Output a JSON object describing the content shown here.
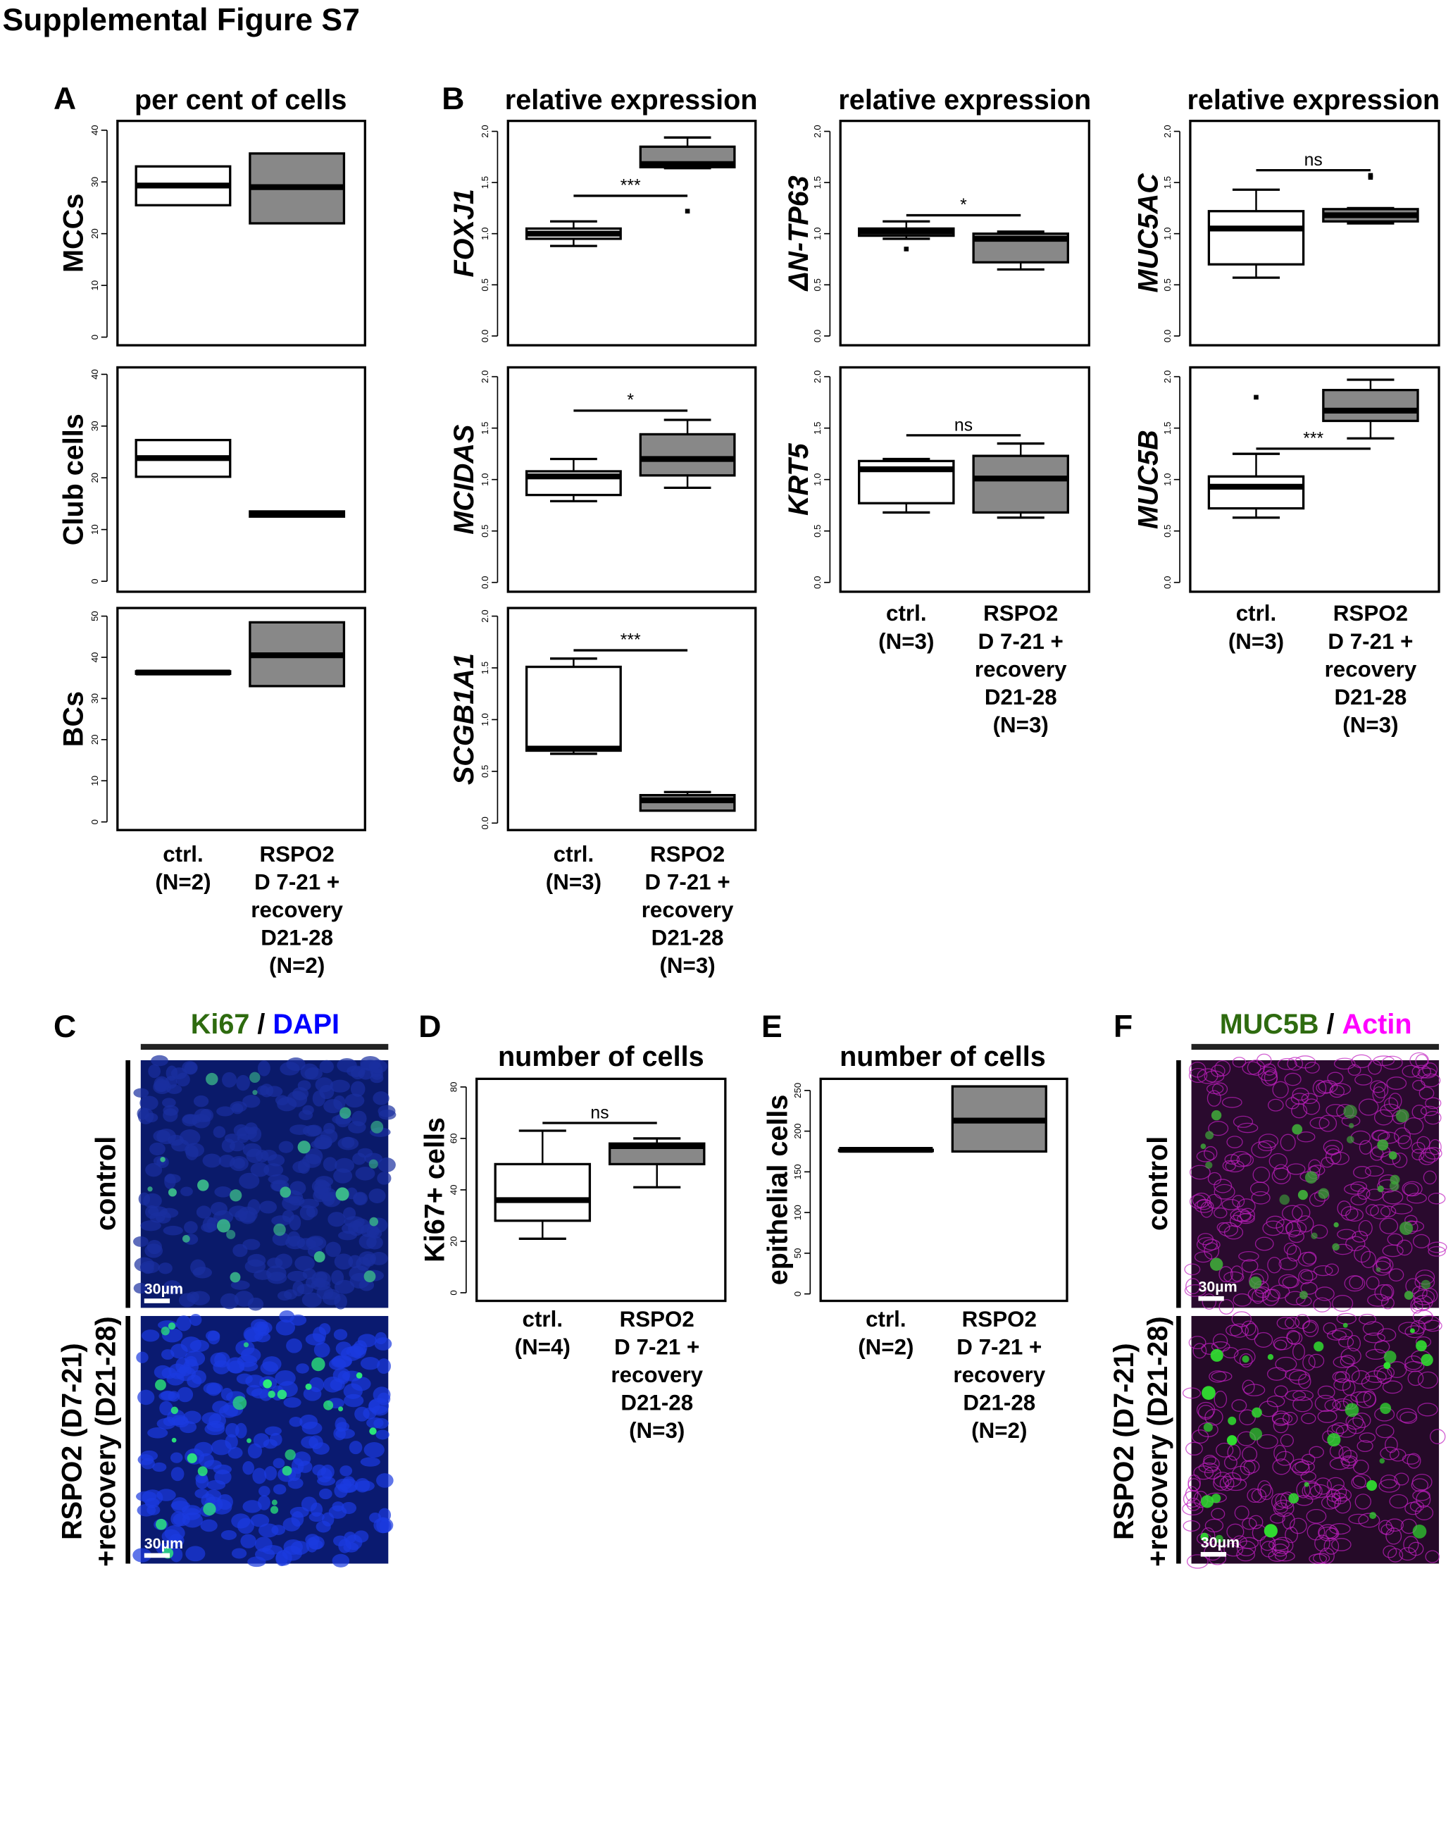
{
  "figure_title": "Supplemental Figure S7",
  "panel_letters": {
    "A": "A",
    "B": "B",
    "C": "C",
    "D": "D",
    "E": "E",
    "F": "F"
  },
  "column_titles": {
    "A": "per cent of cells",
    "B1": "relative expression",
    "B2": "relative expression",
    "B3": "relative expression",
    "D": "number of cells",
    "E": "number of cells"
  },
  "colors": {
    "ctrl_fill": "#ffffff",
    "rspo2_fill": "#888888",
    "ki67": "#2e6b0f",
    "dapi": "#0000ff",
    "muc5b": "#2e6b0f",
    "actin": "#ff00ff"
  },
  "panel_C": {
    "stain1": "Ki67",
    "sep": "/",
    "stain2": "DAPI",
    "row1": "control",
    "row2a": "RSPO2 (D7-21)",
    "row2b": "+recovery (D21-28)",
    "scale1": "30µm",
    "scale2": "30µm"
  },
  "panel_F": {
    "stain1": "MUC5B",
    "sep": "/",
    "stain2": "Actin",
    "row1": "control",
    "row2a": "RSPO2 (D7-21)",
    "row2b": "+recovery (D21-28)",
    "scale1": "30µm",
    "scale2": "30µm"
  },
  "chart_data": [
    {
      "id": "A1",
      "type": "box",
      "ylabel": "MCCs",
      "italic": false,
      "ticks": [
        0,
        10,
        20,
        30,
        40
      ],
      "groups": [
        {
          "name": "ctrl",
          "stats": [
            25.5,
            25.5,
            29.3,
            33,
            33
          ],
          "outliers": []
        },
        {
          "name": "RSPO2",
          "stats": [
            22,
            22,
            29,
            35.5,
            35.5
          ],
          "outliers": []
        }
      ],
      "sig": null,
      "x_labels": null
    },
    {
      "id": "A2",
      "type": "box",
      "ylabel": "Club cells",
      "italic": false,
      "ticks": [
        0,
        10,
        20,
        30,
        40
      ],
      "groups": [
        {
          "name": "ctrl",
          "stats": [
            20.2,
            20.2,
            23.8,
            27.3,
            27.3
          ],
          "outliers": []
        },
        {
          "name": "RSPO2",
          "stats": [
            12.5,
            12.5,
            13,
            13.5,
            13.5
          ],
          "outliers": []
        }
      ],
      "sig": null,
      "x_labels": null
    },
    {
      "id": "A3",
      "type": "box",
      "ylabel": "BCs",
      "italic": false,
      "ticks": [
        0,
        10,
        20,
        30,
        40,
        50
      ],
      "groups": [
        {
          "name": "ctrl",
          "stats": [
            36,
            36,
            36.3,
            36.6,
            36.6
          ],
          "outliers": []
        },
        {
          "name": "RSPO2",
          "stats": [
            33,
            33,
            40.5,
            48.5,
            48.5
          ],
          "outliers": []
        }
      ],
      "sig": null,
      "x_labels": [
        [
          "ctrl.",
          "(N=2)"
        ],
        [
          "RSPO2",
          "D 7-21 +",
          "recovery",
          "D21-28",
          "(N=2)"
        ]
      ]
    },
    {
      "id": "B1",
      "type": "box",
      "ylabel": "FOXJ1",
      "italic": true,
      "ticks": [
        "0.0",
        "0.5",
        "1.0",
        "1.5",
        "2.0"
      ],
      "groups": [
        {
          "name": "ctrl",
          "stats": [
            0.88,
            0.95,
            1.0,
            1.05,
            1.12
          ],
          "outliers": []
        },
        {
          "name": "RSPO2",
          "stats": [
            1.64,
            1.65,
            1.68,
            1.85,
            1.94
          ],
          "outliers": [
            1.22
          ]
        }
      ],
      "sig": {
        "label": "***",
        "y": 1.37
      },
      "x_labels": null
    },
    {
      "id": "B2",
      "type": "box",
      "ylabel": "MCIDAS",
      "italic": true,
      "ticks": [
        "0.0",
        "0.5",
        "1.0",
        "1.5",
        "2.0"
      ],
      "groups": [
        {
          "name": "ctrl",
          "stats": [
            0.79,
            0.85,
            1.03,
            1.08,
            1.2
          ],
          "outliers": []
        },
        {
          "name": "RSPO2",
          "stats": [
            0.92,
            1.04,
            1.2,
            1.44,
            1.58
          ],
          "outliers": []
        }
      ],
      "sig": {
        "label": "*",
        "y": 1.67
      },
      "x_labels": null
    },
    {
      "id": "B3",
      "type": "box",
      "ylabel": "SCGB1A1",
      "italic": true,
      "ticks": [
        "0.0",
        "0.5",
        "1.0",
        "1.5",
        "2.0"
      ],
      "groups": [
        {
          "name": "ctrl",
          "stats": [
            0.67,
            0.7,
            0.72,
            1.51,
            1.59
          ],
          "outliers": []
        },
        {
          "name": "RSPO2",
          "stats": [
            0.12,
            0.12,
            0.22,
            0.27,
            0.3
          ],
          "outliers": []
        }
      ],
      "sig": {
        "label": "***",
        "y": 1.67
      },
      "x_labels": [
        [
          "ctrl.",
          "(N=3)"
        ],
        [
          "RSPO2",
          "D 7-21 +",
          "recovery",
          "D21-28",
          "(N=3)"
        ]
      ]
    },
    {
      "id": "B4",
      "type": "box",
      "ylabel": "ΔN-TP63",
      "italic": true,
      "ticks": [
        "0.0",
        "0.5",
        "1.0",
        "1.5",
        "2.0"
      ],
      "groups": [
        {
          "name": "ctrl",
          "stats": [
            0.95,
            0.98,
            1.02,
            1.05,
            1.12
          ],
          "outliers": [
            0.85
          ]
        },
        {
          "name": "RSPO2",
          "stats": [
            0.65,
            0.72,
            0.95,
            1.0,
            1.02
          ],
          "outliers": []
        }
      ],
      "sig": {
        "label": "*",
        "y": 1.18
      },
      "x_labels": null
    },
    {
      "id": "B5",
      "type": "box",
      "ylabel": "KRT5",
      "italic": true,
      "ticks": [
        "0.0",
        "0.5",
        "1.0",
        "1.5",
        "2.0"
      ],
      "groups": [
        {
          "name": "ctrl",
          "stats": [
            0.68,
            0.77,
            1.1,
            1.18,
            1.2
          ],
          "outliers": []
        },
        {
          "name": "RSPO2",
          "stats": [
            0.63,
            0.68,
            1.01,
            1.23,
            1.35
          ],
          "outliers": []
        }
      ],
      "sig": {
        "label": "ns",
        "y": 1.43
      },
      "x_labels": [
        [
          "ctrl.",
          "(N=3)"
        ],
        [
          "RSPO2",
          "D 7-21 +",
          "recovery",
          "D21-28",
          "(N=3)"
        ]
      ]
    },
    {
      "id": "B6",
      "type": "box",
      "ylabel": "MUC5AC",
      "italic": true,
      "ticks": [
        "0.0",
        "0.5",
        "1.0",
        "1.5",
        "2.0"
      ],
      "groups": [
        {
          "name": "ctrl",
          "stats": [
            0.57,
            0.7,
            1.05,
            1.22,
            1.43
          ],
          "outliers": []
        },
        {
          "name": "RSPO2",
          "stats": [
            1.1,
            1.12,
            1.18,
            1.24,
            1.25
          ],
          "outliers": [
            1.55,
            1.57
          ]
        }
      ],
      "sig": {
        "label": "ns",
        "y": 1.62
      },
      "x_labels": null
    },
    {
      "id": "B7",
      "type": "box",
      "ylabel": "MUC5B",
      "italic": true,
      "ticks": [
        "0.0",
        "0.5",
        "1.0",
        "1.5",
        "2.0"
      ],
      "groups": [
        {
          "name": "ctrl",
          "stats": [
            0.63,
            0.72,
            0.93,
            1.03,
            1.25
          ],
          "outliers": [
            1.8
          ]
        },
        {
          "name": "RSPO2",
          "stats": [
            1.4,
            1.57,
            1.67,
            1.87,
            1.97
          ],
          "outliers": []
        }
      ],
      "sig": {
        "label": "***",
        "y": 1.3
      },
      "x_labels": [
        [
          "ctrl.",
          "(N=3)"
        ],
        [
          "RSPO2",
          "D 7-21 +",
          "recovery",
          "D21-28",
          "(N=3)"
        ]
      ]
    },
    {
      "id": "D",
      "type": "box",
      "ylabel": "Ki67+ cells",
      "italic": false,
      "ticks": [
        0,
        20,
        40,
        60,
        80
      ],
      "groups": [
        {
          "name": "ctrl",
          "stats": [
            21,
            28,
            36,
            50,
            63
          ],
          "outliers": []
        },
        {
          "name": "RSPO2",
          "stats": [
            41,
            50,
            57,
            58,
            60
          ],
          "outliers": []
        }
      ],
      "sig": {
        "label": "ns",
        "y": 66
      },
      "x_labels": [
        [
          "ctrl.",
          "(N=4)"
        ],
        [
          "RSPO2",
          "D 7-21 +",
          "recovery",
          "D21-28",
          "(N=3)"
        ]
      ]
    },
    {
      "id": "E",
      "type": "box",
      "ylabel": "epithelial cells",
      "italic": false,
      "ticks": [
        0,
        50,
        100,
        150,
        200,
        250
      ],
      "groups": [
        {
          "name": "ctrl",
          "stats": [
            177,
            177,
            177,
            177,
            177
          ],
          "outliers": []
        },
        {
          "name": "RSPO2",
          "stats": [
            175,
            175,
            213,
            255,
            255
          ],
          "outliers": []
        }
      ],
      "sig": null,
      "x_labels": [
        [
          "ctrl.",
          "(N=2)"
        ],
        [
          "RSPO2",
          "D 7-21 +",
          "recovery",
          "D21-28",
          "(N=2)"
        ]
      ]
    }
  ]
}
